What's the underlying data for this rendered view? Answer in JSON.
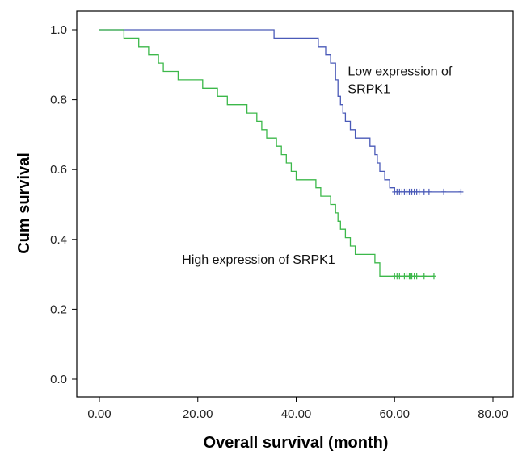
{
  "chart_data": {
    "type": "line",
    "xlabel": "Overall survival (month)",
    "ylabel": "Cum survival",
    "xlim": [
      0,
      80
    ],
    "ylim": [
      0,
      1
    ],
    "x_ticks": [
      "0.00",
      "20.00",
      "40.00",
      "60.00",
      "80.00"
    ],
    "y_ticks": [
      "0.0",
      "0.2",
      "0.4",
      "0.6",
      "0.8",
      "1.0"
    ],
    "grid": false,
    "legend": "none",
    "series": [
      {
        "key": "low",
        "color": "#4a5ab8",
        "step": true,
        "points": [
          [
            0,
            1.0
          ],
          [
            35.5,
            1.0
          ],
          [
            35.5,
            0.976
          ],
          [
            44.5,
            0.976
          ],
          [
            44.5,
            0.952
          ],
          [
            46,
            0.952
          ],
          [
            46,
            0.929
          ],
          [
            47,
            0.929
          ],
          [
            47,
            0.905
          ],
          [
            48,
            0.905
          ],
          [
            48,
            0.857
          ],
          [
            48.5,
            0.857
          ],
          [
            48.5,
            0.81
          ],
          [
            49,
            0.81
          ],
          [
            49,
            0.786
          ],
          [
            49.5,
            0.786
          ],
          [
            49.5,
            0.762
          ],
          [
            50,
            0.762
          ],
          [
            50,
            0.738
          ],
          [
            51,
            0.738
          ],
          [
            51,
            0.714
          ],
          [
            52,
            0.714
          ],
          [
            52,
            0.69
          ],
          [
            55,
            0.69
          ],
          [
            55,
            0.667
          ],
          [
            56,
            0.667
          ],
          [
            56,
            0.643
          ],
          [
            56.5,
            0.643
          ],
          [
            56.5,
            0.619
          ],
          [
            57,
            0.619
          ],
          [
            57,
            0.595
          ],
          [
            58,
            0.595
          ],
          [
            58,
            0.571
          ],
          [
            59,
            0.571
          ],
          [
            59,
            0.548
          ],
          [
            60,
            0.548
          ],
          [
            60,
            0.536
          ],
          [
            73.5,
            0.536
          ]
        ],
        "censor_x": [
          60,
          60.5,
          61,
          61.5,
          62,
          62.5,
          63,
          63.5,
          64,
          64.5,
          65,
          66,
          67,
          70,
          73.5
        ],
        "censor_y": 0.536
      },
      {
        "key": "high",
        "color": "#3cb84a",
        "step": true,
        "points": [
          [
            0,
            1.0
          ],
          [
            5,
            1.0
          ],
          [
            5,
            0.976
          ],
          [
            8,
            0.976
          ],
          [
            8,
            0.952
          ],
          [
            10,
            0.952
          ],
          [
            10,
            0.929
          ],
          [
            12,
            0.929
          ],
          [
            12,
            0.905
          ],
          [
            13,
            0.905
          ],
          [
            13,
            0.881
          ],
          [
            16,
            0.881
          ],
          [
            16,
            0.857
          ],
          [
            21,
            0.857
          ],
          [
            21,
            0.833
          ],
          [
            24,
            0.833
          ],
          [
            24,
            0.81
          ],
          [
            26,
            0.81
          ],
          [
            26,
            0.786
          ],
          [
            30,
            0.786
          ],
          [
            30,
            0.762
          ],
          [
            32,
            0.762
          ],
          [
            32,
            0.738
          ],
          [
            33,
            0.738
          ],
          [
            33,
            0.714
          ],
          [
            34,
            0.714
          ],
          [
            34,
            0.69
          ],
          [
            36,
            0.69
          ],
          [
            36,
            0.667
          ],
          [
            37,
            0.667
          ],
          [
            37,
            0.643
          ],
          [
            38,
            0.643
          ],
          [
            38,
            0.619
          ],
          [
            39,
            0.619
          ],
          [
            39,
            0.595
          ],
          [
            40,
            0.595
          ],
          [
            40,
            0.571
          ],
          [
            44,
            0.571
          ],
          [
            44,
            0.548
          ],
          [
            45,
            0.548
          ],
          [
            45,
            0.524
          ],
          [
            47,
            0.524
          ],
          [
            47,
            0.5
          ],
          [
            48,
            0.5
          ],
          [
            48,
            0.476
          ],
          [
            48.5,
            0.476
          ],
          [
            48.5,
            0.452
          ],
          [
            49,
            0.452
          ],
          [
            49,
            0.429
          ],
          [
            50,
            0.429
          ],
          [
            50,
            0.405
          ],
          [
            51,
            0.405
          ],
          [
            51,
            0.381
          ],
          [
            52,
            0.381
          ],
          [
            52,
            0.357
          ],
          [
            56,
            0.357
          ],
          [
            56,
            0.333
          ],
          [
            57,
            0.333
          ],
          [
            57,
            0.295
          ],
          [
            68,
            0.295
          ]
        ],
        "censor_x": [
          60,
          60.5,
          61,
          62,
          62.5,
          63,
          63.2,
          63.5,
          64,
          64.5,
          66,
          68
        ],
        "censor_y": 0.295
      }
    ],
    "annotations": [
      {
        "key": "low",
        "lines": [
          "Low expression of",
          "SRPK1"
        ],
        "x": 50.5,
        "y": 0.87
      },
      {
        "key": "high",
        "lines": [
          "High expression of SRPK1"
        ],
        "x": 16.8,
        "y": 0.33
      }
    ]
  }
}
